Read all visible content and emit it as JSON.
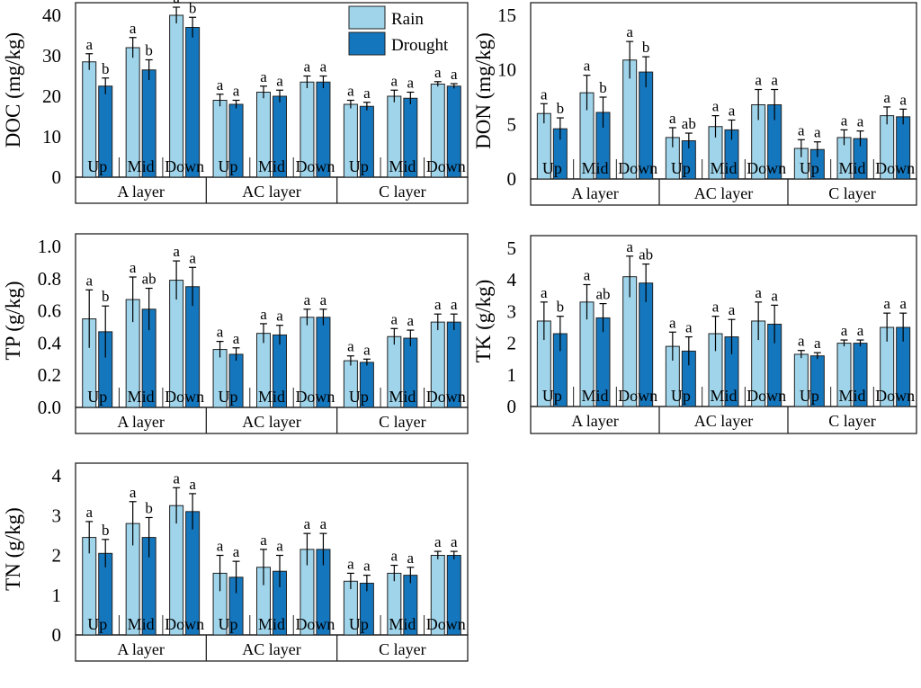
{
  "colors": {
    "rain": "#9fd4ea",
    "drought": "#1476bd",
    "frame": "#222222"
  },
  "shared": {
    "positions": [
      "Up",
      "Mid",
      "Down"
    ],
    "layers": [
      "A layer",
      "AC layer",
      "C layer"
    ],
    "legend": [
      "Rain",
      "Drought"
    ]
  },
  "chart_data": [
    {
      "id": "doc",
      "type": "bar",
      "ylabel": "DOC (mg/kg)",
      "ylim": [
        0,
        40
      ],
      "yticks": [
        0,
        10,
        20,
        30,
        40
      ],
      "categories": [
        "A layer Up",
        "A layer Mid",
        "A layer Down",
        "AC layer Up",
        "AC layer Mid",
        "AC layer Down",
        "C layer Up",
        "C layer Mid",
        "C layer Down"
      ],
      "series": [
        {
          "name": "Rain",
          "values": [
            28.5,
            32,
            40,
            19,
            21,
            23.5,
            18,
            20,
            23
          ],
          "errors": [
            2.0,
            2.5,
            2.0,
            1.5,
            1.5,
            1.5,
            1.0,
            1.5,
            0.6
          ],
          "letters": [
            "a",
            "a",
            "a",
            "a",
            "a",
            "a",
            "a",
            "a",
            "a"
          ]
        },
        {
          "name": "Drought",
          "values": [
            22.5,
            26.5,
            37,
            18,
            20,
            23.5,
            17.5,
            19.5,
            22.5
          ],
          "errors": [
            2.0,
            2.5,
            2.5,
            1.0,
            1.5,
            1.5,
            1.0,
            1.5,
            0.6
          ],
          "letters": [
            "b",
            "b",
            "b",
            "a",
            "a",
            "a",
            "a",
            "a",
            "a"
          ]
        }
      ]
    },
    {
      "id": "don",
      "type": "bar",
      "ylabel": "DON (mg/kg)",
      "ylim": [
        0,
        15
      ],
      "yticks": [
        0,
        5,
        10,
        15
      ],
      "categories": [
        "A layer Up",
        "A layer Mid",
        "A layer Down",
        "AC layer Up",
        "AC layer Mid",
        "AC layer Down",
        "C layer Up",
        "C layer Mid",
        "C layer Down"
      ],
      "series": [
        {
          "name": "Rain",
          "values": [
            6,
            7.9,
            10.9,
            3.8,
            4.8,
            6.8,
            2.8,
            3.8,
            5.8
          ],
          "errors": [
            0.9,
            1.6,
            1.7,
            0.9,
            1.0,
            1.4,
            0.8,
            0.7,
            0.8
          ],
          "letters": [
            "a",
            "a",
            "a",
            "a",
            "a",
            "a",
            "a",
            "a",
            "a"
          ]
        },
        {
          "name": "Drought",
          "values": [
            4.6,
            6.1,
            9.8,
            3.5,
            4.5,
            6.8,
            2.7,
            3.7,
            5.7
          ],
          "errors": [
            1.0,
            1.4,
            1.4,
            0.7,
            0.9,
            1.4,
            0.7,
            0.7,
            0.7
          ],
          "letters": [
            "b",
            "b",
            "b",
            "ab",
            "a",
            "a",
            "a",
            "a",
            "a"
          ]
        }
      ]
    },
    {
      "id": "tp",
      "type": "bar",
      "ylabel": "TP (g/kg)",
      "ylim": [
        0,
        1.0
      ],
      "yticks": [
        0.0,
        0.2,
        0.4,
        0.6,
        0.8,
        1.0
      ],
      "tickFormat": 1,
      "categories": [
        "A layer Up",
        "A layer Mid",
        "A layer Down",
        "AC layer Up",
        "AC layer Mid",
        "AC layer Down",
        "C layer Up",
        "C layer Mid",
        "C layer Down"
      ],
      "series": [
        {
          "name": "Rain",
          "values": [
            0.55,
            0.67,
            0.79,
            0.36,
            0.46,
            0.56,
            0.29,
            0.44,
            0.53
          ],
          "errors": [
            0.18,
            0.14,
            0.12,
            0.05,
            0.06,
            0.05,
            0.03,
            0.05,
            0.05
          ],
          "letters": [
            "a",
            "a",
            "a",
            "a",
            "a",
            "a",
            "a",
            "a",
            "a"
          ]
        },
        {
          "name": "Drought",
          "values": [
            0.47,
            0.61,
            0.75,
            0.33,
            0.45,
            0.56,
            0.28,
            0.43,
            0.53
          ],
          "errors": [
            0.16,
            0.13,
            0.12,
            0.04,
            0.06,
            0.05,
            0.02,
            0.05,
            0.05
          ],
          "letters": [
            "b",
            "ab",
            "a",
            "a",
            "a",
            "a",
            "a",
            "a",
            "a"
          ]
        }
      ]
    },
    {
      "id": "tk",
      "type": "bar",
      "ylabel": "TK (g/kg)",
      "ylim": [
        0,
        5
      ],
      "yticks": [
        0,
        1,
        2,
        3,
        4,
        5
      ],
      "categories": [
        "A layer Up",
        "A layer Mid",
        "A layer Down",
        "AC layer Up",
        "AC layer Mid",
        "AC layer Down",
        "C layer Up",
        "C layer Mid",
        "C layer Down"
      ],
      "series": [
        {
          "name": "Rain",
          "values": [
            2.7,
            3.3,
            4.1,
            1.9,
            2.3,
            2.7,
            1.65,
            2.0,
            2.5
          ],
          "errors": [
            0.6,
            0.55,
            0.65,
            0.45,
            0.55,
            0.6,
            0.12,
            0.1,
            0.45
          ],
          "letters": [
            "a",
            "a",
            "a",
            "a",
            "a",
            "a",
            "a",
            "a",
            "a"
          ]
        },
        {
          "name": "Drought",
          "values": [
            2.3,
            2.8,
            3.9,
            1.75,
            2.2,
            2.6,
            1.6,
            2.0,
            2.5
          ],
          "errors": [
            0.55,
            0.45,
            0.6,
            0.45,
            0.55,
            0.6,
            0.1,
            0.1,
            0.45
          ],
          "letters": [
            "b",
            "ab",
            "ab",
            "a",
            "a",
            "a",
            "a",
            "a",
            "a"
          ]
        }
      ]
    },
    {
      "id": "tn",
      "type": "bar",
      "ylabel": "TN (g/kg)",
      "ylim": [
        0,
        4
      ],
      "yticks": [
        0,
        1,
        2,
        3,
        4
      ],
      "categories": [
        "A layer Up",
        "A layer Mid",
        "A layer Down",
        "AC layer Up",
        "AC layer Mid",
        "AC layer Down",
        "C layer Up",
        "C layer Mid",
        "C layer Down"
      ],
      "series": [
        {
          "name": "Rain",
          "values": [
            2.45,
            2.8,
            3.25,
            1.55,
            1.7,
            2.15,
            1.35,
            1.55,
            2.0
          ],
          "errors": [
            0.4,
            0.55,
            0.45,
            0.45,
            0.45,
            0.4,
            0.2,
            0.2,
            0.1
          ],
          "letters": [
            "a",
            "a",
            "a",
            "a",
            "a",
            "a",
            "a",
            "a",
            "a"
          ]
        },
        {
          "name": "Drought",
          "values": [
            2.05,
            2.45,
            3.1,
            1.45,
            1.6,
            2.15,
            1.3,
            1.5,
            2.0
          ],
          "errors": [
            0.35,
            0.5,
            0.45,
            0.4,
            0.4,
            0.4,
            0.2,
            0.2,
            0.1
          ],
          "letters": [
            "b",
            "b",
            "a",
            "a",
            "a",
            "a",
            "a",
            "a",
            "a"
          ]
        }
      ]
    }
  ]
}
